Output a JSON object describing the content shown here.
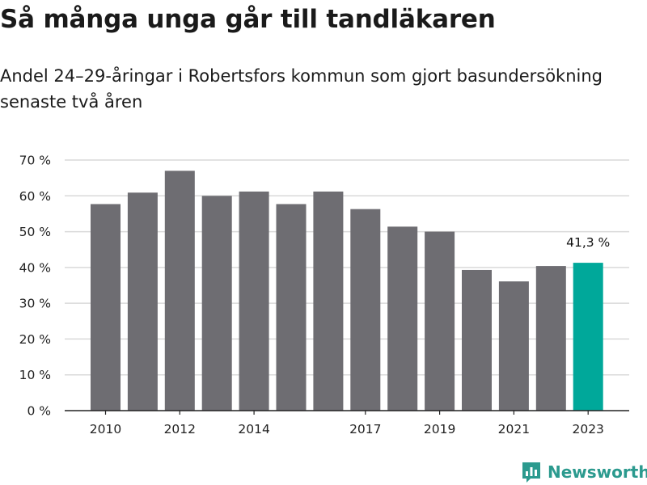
{
  "title": "Så många unga går till tandläkaren",
  "subtitle": "Andel 24–29-åringar i Robertsfors kommun som gjort basundersökning senaste två åren",
  "brand": {
    "name": "Newsworthy",
    "icon": "newsworthy-logo-icon",
    "color": "#2b9a8e"
  },
  "colors": {
    "bar": "#6e6d72",
    "highlight": "#00a89a",
    "grid": "#d9d9d9",
    "axis": "#222222"
  },
  "chart_data": {
    "type": "bar",
    "title": "Så många unga går till tandläkaren",
    "subtitle": "Andel 24–29-åringar i Robertsfors kommun som gjort basundersökning senaste två åren",
    "categories": [
      "2010",
      "2011",
      "2012",
      "2013",
      "2014",
      "2015",
      "2016",
      "2017",
      "2018",
      "2019",
      "2020",
      "2021",
      "2022",
      "2023"
    ],
    "values": [
      57.7,
      60.9,
      67.0,
      60.0,
      61.2,
      57.7,
      61.2,
      56.3,
      51.4,
      50.0,
      39.3,
      36.1,
      40.4,
      41.3
    ],
    "highlight_index": 13,
    "x_tick_labels": [
      "2010",
      "2012",
      "2014",
      "2017",
      "2019",
      "2021",
      "2023"
    ],
    "y_ticks": [
      0,
      10,
      20,
      30,
      40,
      50,
      60,
      70
    ],
    "y_tick_labels": [
      "0 %",
      "10 %",
      "20 %",
      "30 %",
      "40 %",
      "50 %",
      "60 %",
      "70 %"
    ],
    "ylim": [
      0,
      70
    ],
    "data_labels": [
      {
        "category": "2023",
        "text": "41,3 %"
      }
    ],
    "xlabel": "",
    "ylabel": "",
    "grid": true,
    "legend": "none"
  }
}
